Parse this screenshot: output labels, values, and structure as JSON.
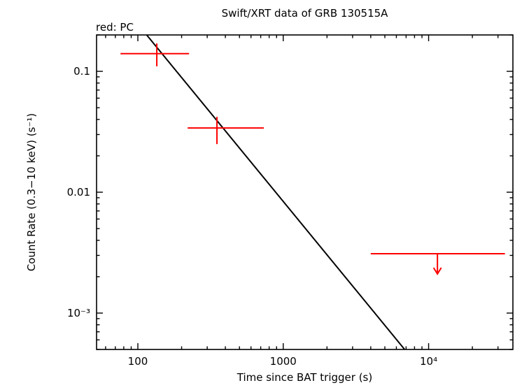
{
  "chart_data": {
    "type": "scatter",
    "title": "Swift/XRT data of GRB 130515A",
    "mode_label": "red: PC",
    "xlabel": "Time since BAT trigger (s)",
    "ylabel": "Count Rate (0.3−10 keV) (s⁻¹)",
    "xscale": "log",
    "yscale": "log",
    "xlim": [
      52,
      38000
    ],
    "ylim": [
      0.0005,
      0.2
    ],
    "grid": false,
    "xticks": [
      {
        "value": 100,
        "label": "100"
      },
      {
        "value": 1000,
        "label": "1000"
      },
      {
        "value": 10000,
        "label": "10⁴"
      }
    ],
    "yticks": [
      {
        "value": 0.001,
        "label": "10⁻³"
      },
      {
        "value": 0.01,
        "label": "0.01"
      },
      {
        "value": 0.1,
        "label": "0.1"
      }
    ],
    "series": [
      {
        "name": "PC mode",
        "color": "#ff0000",
        "points": [
          {
            "t": 135,
            "t_lo": 76,
            "t_hi": 225,
            "rate": 0.14,
            "rate_lo": 0.11,
            "rate_hi": 0.17,
            "upper_limit": false
          },
          {
            "t": 350,
            "t_lo": 220,
            "t_hi": 735,
            "rate": 0.034,
            "rate_lo": 0.025,
            "rate_hi": 0.042,
            "upper_limit": false
          },
          {
            "t": 11500,
            "t_lo": 4000,
            "t_hi": 33500,
            "rate": 0.0031,
            "upper_limit": true
          }
        ]
      }
    ],
    "fit_line": {
      "color": "#000000",
      "slope": -1.47,
      "points": [
        {
          "t": 115,
          "rate": 0.2
        },
        {
          "t": 6840,
          "rate": 0.0005
        }
      ]
    }
  }
}
